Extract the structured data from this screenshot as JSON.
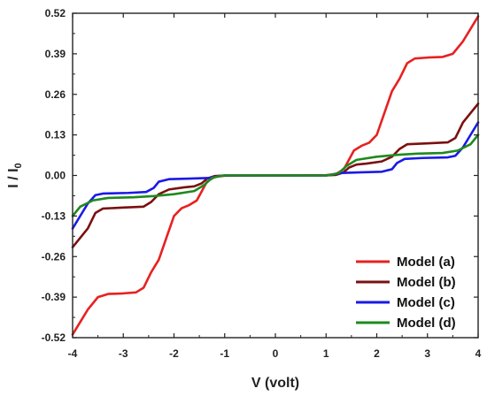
{
  "chart_data": {
    "type": "line",
    "xlabel": "V (volt)",
    "ylabel": "I / I",
    "ylabel_sub": "0",
    "xlim": [
      -4,
      4
    ],
    "ylim": [
      -0.52,
      0.52
    ],
    "xticks": [
      "-4",
      "-3",
      "-2",
      "-1",
      "0",
      "1",
      "2",
      "3",
      "4"
    ],
    "yticks": [
      "0.52",
      "0.39",
      "0.26",
      "0.13",
      "0.00",
      "-0.13",
      "-0.26",
      "-0.39",
      "-0.52"
    ],
    "legend_position": "bottom-right",
    "series": [
      {
        "name": "Model (a)",
        "color": "#e82020",
        "points": [
          [
            -4.0,
            -0.51
          ],
          [
            -3.85,
            -0.47
          ],
          [
            -3.7,
            -0.43
          ],
          [
            -3.5,
            -0.39
          ],
          [
            -3.3,
            -0.38
          ],
          [
            -3.0,
            -0.378
          ],
          [
            -2.75,
            -0.375
          ],
          [
            -2.6,
            -0.36
          ],
          [
            -2.45,
            -0.31
          ],
          [
            -2.3,
            -0.27
          ],
          [
            -2.15,
            -0.2
          ],
          [
            -2.0,
            -0.13
          ],
          [
            -1.85,
            -0.105
          ],
          [
            -1.7,
            -0.095
          ],
          [
            -1.55,
            -0.08
          ],
          [
            -1.45,
            -0.05
          ],
          [
            -1.35,
            -0.02
          ],
          [
            -1.2,
            -0.005
          ],
          [
            -1.0,
            -0.001
          ],
          [
            0.0,
            0.0
          ],
          [
            1.0,
            0.001
          ],
          [
            1.2,
            0.005
          ],
          [
            1.35,
            0.02
          ],
          [
            1.45,
            0.05
          ],
          [
            1.55,
            0.08
          ],
          [
            1.7,
            0.095
          ],
          [
            1.85,
            0.105
          ],
          [
            2.0,
            0.13
          ],
          [
            2.15,
            0.2
          ],
          [
            2.3,
            0.27
          ],
          [
            2.45,
            0.31
          ],
          [
            2.6,
            0.36
          ],
          [
            2.75,
            0.375
          ],
          [
            3.0,
            0.378
          ],
          [
            3.3,
            0.38
          ],
          [
            3.5,
            0.39
          ],
          [
            3.7,
            0.43
          ],
          [
            3.85,
            0.47
          ],
          [
            4.0,
            0.51
          ]
        ]
      },
      {
        "name": "Model (b)",
        "color": "#7a1010",
        "points": [
          [
            -4.0,
            -0.23
          ],
          [
            -3.85,
            -0.2
          ],
          [
            -3.7,
            -0.17
          ],
          [
            -3.55,
            -0.12
          ],
          [
            -3.4,
            -0.106
          ],
          [
            -3.0,
            -0.103
          ],
          [
            -2.6,
            -0.1
          ],
          [
            -2.45,
            -0.085
          ],
          [
            -2.3,
            -0.06
          ],
          [
            -2.1,
            -0.045
          ],
          [
            -1.8,
            -0.038
          ],
          [
            -1.6,
            -0.035
          ],
          [
            -1.45,
            -0.025
          ],
          [
            -1.35,
            -0.01
          ],
          [
            -1.2,
            -0.002
          ],
          [
            -1.0,
            0.0
          ],
          [
            0.0,
            0.0
          ],
          [
            1.0,
            0.0
          ],
          [
            1.2,
            0.002
          ],
          [
            1.35,
            0.01
          ],
          [
            1.45,
            0.025
          ],
          [
            1.6,
            0.035
          ],
          [
            1.8,
            0.038
          ],
          [
            2.1,
            0.045
          ],
          [
            2.3,
            0.06
          ],
          [
            2.45,
            0.085
          ],
          [
            2.6,
            0.1
          ],
          [
            3.0,
            0.103
          ],
          [
            3.4,
            0.106
          ],
          [
            3.55,
            0.12
          ],
          [
            3.7,
            0.17
          ],
          [
            3.85,
            0.2
          ],
          [
            4.0,
            0.23
          ]
        ]
      },
      {
        "name": "Model (c)",
        "color": "#1a1ae6",
        "points": [
          [
            -4.0,
            -0.17
          ],
          [
            -3.85,
            -0.13
          ],
          [
            -3.7,
            -0.09
          ],
          [
            -3.55,
            -0.063
          ],
          [
            -3.4,
            -0.058
          ],
          [
            -2.9,
            -0.056
          ],
          [
            -2.55,
            -0.053
          ],
          [
            -2.4,
            -0.04
          ],
          [
            -2.3,
            -0.02
          ],
          [
            -2.1,
            -0.012
          ],
          [
            -1.7,
            -0.01
          ],
          [
            -1.3,
            -0.008
          ],
          [
            -1.1,
            -0.002
          ],
          [
            -1.0,
            0.0
          ],
          [
            0.0,
            0.0
          ],
          [
            1.0,
            0.0
          ],
          [
            1.1,
            0.002
          ],
          [
            1.3,
            0.008
          ],
          [
            1.7,
            0.01
          ],
          [
            2.1,
            0.012
          ],
          [
            2.3,
            0.02
          ],
          [
            2.4,
            0.04
          ],
          [
            2.55,
            0.053
          ],
          [
            2.9,
            0.056
          ],
          [
            3.4,
            0.058
          ],
          [
            3.55,
            0.063
          ],
          [
            3.7,
            0.09
          ],
          [
            3.85,
            0.13
          ],
          [
            4.0,
            0.17
          ]
        ]
      },
      {
        "name": "Model (d)",
        "color": "#1e8a1e",
        "points": [
          [
            -4.0,
            -0.13
          ],
          [
            -3.85,
            -0.1
          ],
          [
            -3.6,
            -0.08
          ],
          [
            -3.3,
            -0.072
          ],
          [
            -2.8,
            -0.07
          ],
          [
            -2.4,
            -0.066
          ],
          [
            -2.0,
            -0.06
          ],
          [
            -1.6,
            -0.05
          ],
          [
            -1.4,
            -0.03
          ],
          [
            -1.25,
            -0.008
          ],
          [
            -1.1,
            -0.002
          ],
          [
            -1.0,
            0.0
          ],
          [
            0.0,
            0.0
          ],
          [
            1.0,
            0.0
          ],
          [
            1.1,
            0.002
          ],
          [
            1.25,
            0.008
          ],
          [
            1.4,
            0.03
          ],
          [
            1.6,
            0.05
          ],
          [
            2.0,
            0.06
          ],
          [
            2.4,
            0.066
          ],
          [
            2.8,
            0.07
          ],
          [
            3.3,
            0.072
          ],
          [
            3.6,
            0.08
          ],
          [
            3.85,
            0.1
          ],
          [
            4.0,
            0.13
          ]
        ]
      }
    ]
  }
}
